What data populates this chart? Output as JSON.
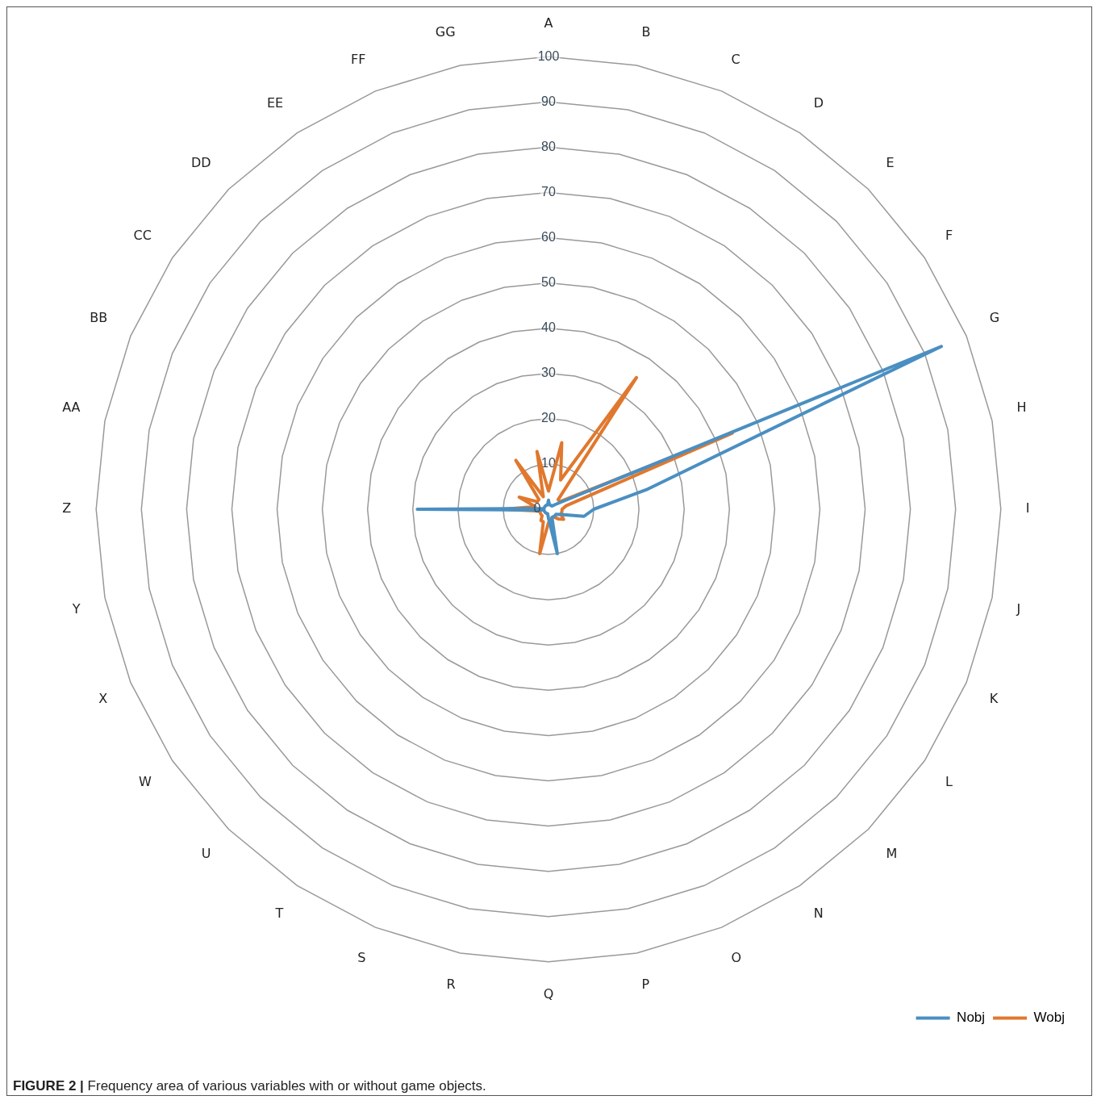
{
  "chart_data": {
    "type": "radar",
    "categories": [
      "A",
      "B",
      "C",
      "D",
      "E",
      "F",
      "G",
      "H",
      "I",
      "J",
      "K",
      "L",
      "M",
      "N",
      "O",
      "P",
      "Q",
      "R",
      "S",
      "T",
      "U",
      "W",
      "X",
      "Y",
      "Z",
      "AA",
      "BB",
      "CC",
      "DD",
      "EE",
      "FF",
      "GG"
    ],
    "series": [
      {
        "name": "Nobj",
        "color": "#4a8fc2",
        "values": [
          2,
          1,
          1,
          1,
          1,
          2,
          94,
          22,
          10,
          8,
          3,
          2,
          2,
          2,
          2,
          10,
          2,
          1,
          1,
          1,
          1,
          1,
          1,
          1,
          29,
          1,
          1,
          1,
          1,
          1,
          1,
          1
        ]
      },
      {
        "name": "Wobj",
        "color": "#e0782e",
        "values": [
          4,
          15,
          7,
          35,
          3,
          3,
          44,
          4,
          3,
          3,
          3,
          4,
          3,
          2,
          2,
          3,
          3,
          10,
          3,
          3,
          2,
          2,
          2,
          2,
          10,
          3,
          7,
          3,
          3,
          13,
          3,
          13
        ]
      }
    ],
    "ylim": [
      0,
      100
    ],
    "yticks": [
      0,
      10,
      20,
      30,
      40,
      50,
      60,
      70,
      80,
      90,
      100
    ],
    "grid": true,
    "legend": "bottom right",
    "marker": "none",
    "annotations": [
      "FIGURE 2 | Frequency area of various variables with or without game objects."
    ]
  }
}
